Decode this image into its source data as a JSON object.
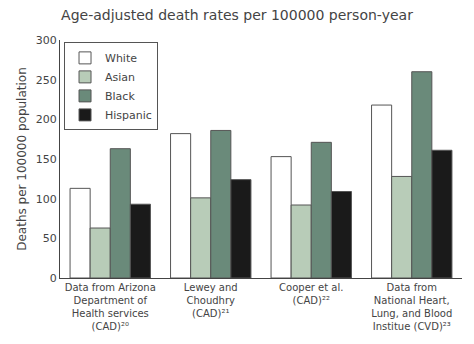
{
  "chart_data": {
    "type": "bar",
    "title": "Age-adjusted death rates per 100000 person-year",
    "ylabel": "Deaths per 100000 population",
    "categories": [
      "Data from Arizona\nDepartment of\nHealth services\n(CAD)²⁰",
      "Lewey and\nChoudhry\n(CAD)²¹",
      "Cooper et al.\n(CAD)²²",
      "Data from\nNational Heart,\nLung, and Blood\nInstitue (CVD)²³"
    ],
    "series": [
      {
        "name": "White",
        "color": "#ffffff",
        "values": [
          113,
          182,
          153,
          218
        ]
      },
      {
        "name": "Asian",
        "color": "#b8ccb8",
        "values": [
          63,
          101,
          92,
          128
        ]
      },
      {
        "name": "Black",
        "color": "#6a8a7a",
        "values": [
          163,
          186,
          171,
          260
        ]
      },
      {
        "name": "Hispanic",
        "color": "#1a1a1a",
        "values": [
          93,
          124,
          109,
          161
        ]
      }
    ],
    "ylim": [
      0,
      300
    ],
    "yticks": [
      0,
      50,
      100,
      150,
      200,
      250,
      300
    ],
    "grid": false,
    "legend": "upper left"
  }
}
